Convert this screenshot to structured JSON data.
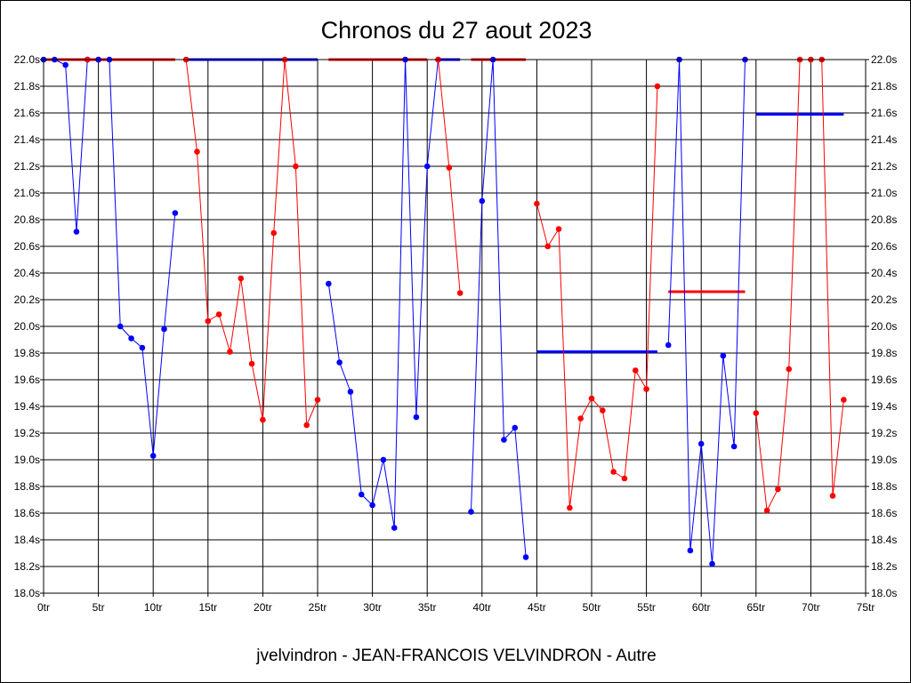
{
  "chart_data": {
    "type": "line",
    "title": "Chronos du 27 aout 2023",
    "footer": "jvelvindron - JEAN-FRANCOIS VELVINDRON - Autre",
    "xlim": [
      0,
      75
    ],
    "ylim": [
      18.0,
      22.0
    ],
    "grid": true,
    "x_ticks": [
      {
        "value": 0,
        "label": "0tr"
      },
      {
        "value": 5,
        "label": "5tr"
      },
      {
        "value": 10,
        "label": "10tr"
      },
      {
        "value": 15,
        "label": "15tr"
      },
      {
        "value": 20,
        "label": "20tr"
      },
      {
        "value": 25,
        "label": "25tr"
      },
      {
        "value": 30,
        "label": "30tr"
      },
      {
        "value": 35,
        "label": "35tr"
      },
      {
        "value": 40,
        "label": "40tr"
      },
      {
        "value": 45,
        "label": "45tr"
      },
      {
        "value": 50,
        "label": "50tr"
      },
      {
        "value": 55,
        "label": "55tr"
      },
      {
        "value": 60,
        "label": "60tr"
      },
      {
        "value": 65,
        "label": "65tr"
      },
      {
        "value": 70,
        "label": "70tr"
      },
      {
        "value": 75,
        "label": "75tr"
      }
    ],
    "y_ticks": [
      {
        "value": 18.0,
        "label": "18.0s"
      },
      {
        "value": 18.2,
        "label": "18.2s"
      },
      {
        "value": 18.4,
        "label": "18.4s"
      },
      {
        "value": 18.6,
        "label": "18.6s"
      },
      {
        "value": 18.8,
        "label": "18.8s"
      },
      {
        "value": 19.0,
        "label": "19.0s"
      },
      {
        "value": 19.2,
        "label": "19.2s"
      },
      {
        "value": 19.4,
        "label": "19.4s"
      },
      {
        "value": 19.6,
        "label": "19.6s"
      },
      {
        "value": 19.8,
        "label": "19.8s"
      },
      {
        "value": 20.0,
        "label": "20.0s"
      },
      {
        "value": 20.2,
        "label": "20.2s"
      },
      {
        "value": 20.4,
        "label": "20.4s"
      },
      {
        "value": 20.6,
        "label": "20.6s"
      },
      {
        "value": 20.8,
        "label": "20.8s"
      },
      {
        "value": 21.0,
        "label": "21.0s"
      },
      {
        "value": 21.2,
        "label": "21.2s"
      },
      {
        "value": 21.4,
        "label": "21.4s"
      },
      {
        "value": 21.6,
        "label": "21.6s"
      },
      {
        "value": 21.8,
        "label": "21.8s"
      },
      {
        "value": 22.0,
        "label": "22.0s"
      }
    ],
    "series": [
      {
        "color": "#0000ff",
        "points": [
          [
            0,
            22.0
          ],
          [
            1,
            22.0
          ],
          [
            2,
            21.96
          ],
          [
            3,
            20.71
          ],
          [
            4,
            22.0
          ]
        ]
      },
      {
        "color": "#ff0000",
        "points": [
          [
            4,
            22.0
          ],
          [
            5,
            22.0
          ]
        ]
      },
      {
        "color": "#0000ff",
        "points": [
          [
            5,
            22.0
          ],
          [
            6,
            22.0
          ],
          [
            7,
            20.0
          ],
          [
            8,
            19.91
          ],
          [
            9,
            19.84
          ],
          [
            10,
            19.03
          ],
          [
            11,
            19.98
          ],
          [
            12,
            20.85
          ]
        ]
      },
      {
        "color": "#ff0000",
        "points": [
          [
            13,
            22.0
          ],
          [
            14,
            21.31
          ],
          [
            15,
            20.04
          ],
          [
            16,
            20.09
          ],
          [
            17,
            19.81
          ],
          [
            18,
            20.36
          ],
          [
            19,
            19.72
          ],
          [
            20,
            19.3
          ],
          [
            21,
            20.7
          ],
          [
            22,
            22.0
          ],
          [
            23,
            21.2
          ],
          [
            24,
            19.26
          ],
          [
            25,
            19.45
          ]
        ]
      },
      {
        "color": "#0000ff",
        "points": [
          [
            26,
            20.32
          ],
          [
            27,
            19.73
          ],
          [
            28,
            19.51
          ],
          [
            29,
            18.74
          ],
          [
            30,
            18.66
          ],
          [
            31,
            19.0
          ],
          [
            32,
            18.49
          ],
          [
            33,
            22.0
          ],
          [
            34,
            19.32
          ],
          [
            35,
            21.2
          ],
          [
            36,
            22.0
          ]
        ]
      },
      {
        "color": "#ff0000",
        "points": [
          [
            36,
            22.0
          ],
          [
            37,
            21.19
          ],
          [
            38,
            20.25
          ]
        ]
      },
      {
        "color": "#0000ff",
        "points": [
          [
            39,
            18.61
          ],
          [
            40,
            20.94
          ],
          [
            41,
            22.0
          ],
          [
            42,
            19.15
          ],
          [
            43,
            19.24
          ],
          [
            44,
            18.27
          ]
        ]
      },
      {
        "color": "#ff0000",
        "points": [
          [
            45,
            20.92
          ],
          [
            46,
            20.6
          ],
          [
            47,
            20.73
          ],
          [
            48,
            18.64
          ],
          [
            49,
            19.31
          ],
          [
            50,
            19.46
          ],
          [
            51,
            19.37
          ],
          [
            52,
            18.91
          ],
          [
            53,
            18.86
          ],
          [
            54,
            19.67
          ],
          [
            55,
            19.53
          ],
          [
            56,
            21.8
          ]
        ]
      },
      {
        "color": "#0000ff",
        "points": [
          [
            57,
            19.86
          ],
          [
            58,
            22.0
          ],
          [
            59,
            18.32
          ],
          [
            60,
            19.12
          ],
          [
            61,
            18.22
          ],
          [
            62,
            19.78
          ],
          [
            63,
            19.1
          ],
          [
            64,
            22.0
          ]
        ]
      },
      {
        "color": "#ff0000",
        "points": [
          [
            65,
            19.35
          ],
          [
            66,
            18.62
          ],
          [
            67,
            18.78
          ],
          [
            68,
            19.68
          ],
          [
            69,
            22.0
          ],
          [
            70,
            22.0
          ],
          [
            71,
            22.0
          ],
          [
            72,
            18.73
          ],
          [
            73,
            19.45
          ]
        ]
      }
    ],
    "reference_lines": [
      {
        "color": "#ff0000",
        "x": [
          0,
          12
        ],
        "y": 22.0
      },
      {
        "color": "#0000ff",
        "x": [
          13,
          25
        ],
        "y": 22.0
      },
      {
        "color": "#ff0000",
        "x": [
          26,
          35
        ],
        "y": 22.0
      },
      {
        "color": "#0000ff",
        "x": [
          36,
          38
        ],
        "y": 22.0
      },
      {
        "color": "#ff0000",
        "x": [
          39,
          44
        ],
        "y": 22.0
      },
      {
        "color": "#0000ff",
        "x": [
          45,
          56
        ],
        "y": 19.81
      },
      {
        "color": "#ff0000",
        "x": [
          57,
          64
        ],
        "y": 20.26
      },
      {
        "color": "#0000ff",
        "x": [
          65,
          73
        ],
        "y": 21.59
      }
    ]
  }
}
